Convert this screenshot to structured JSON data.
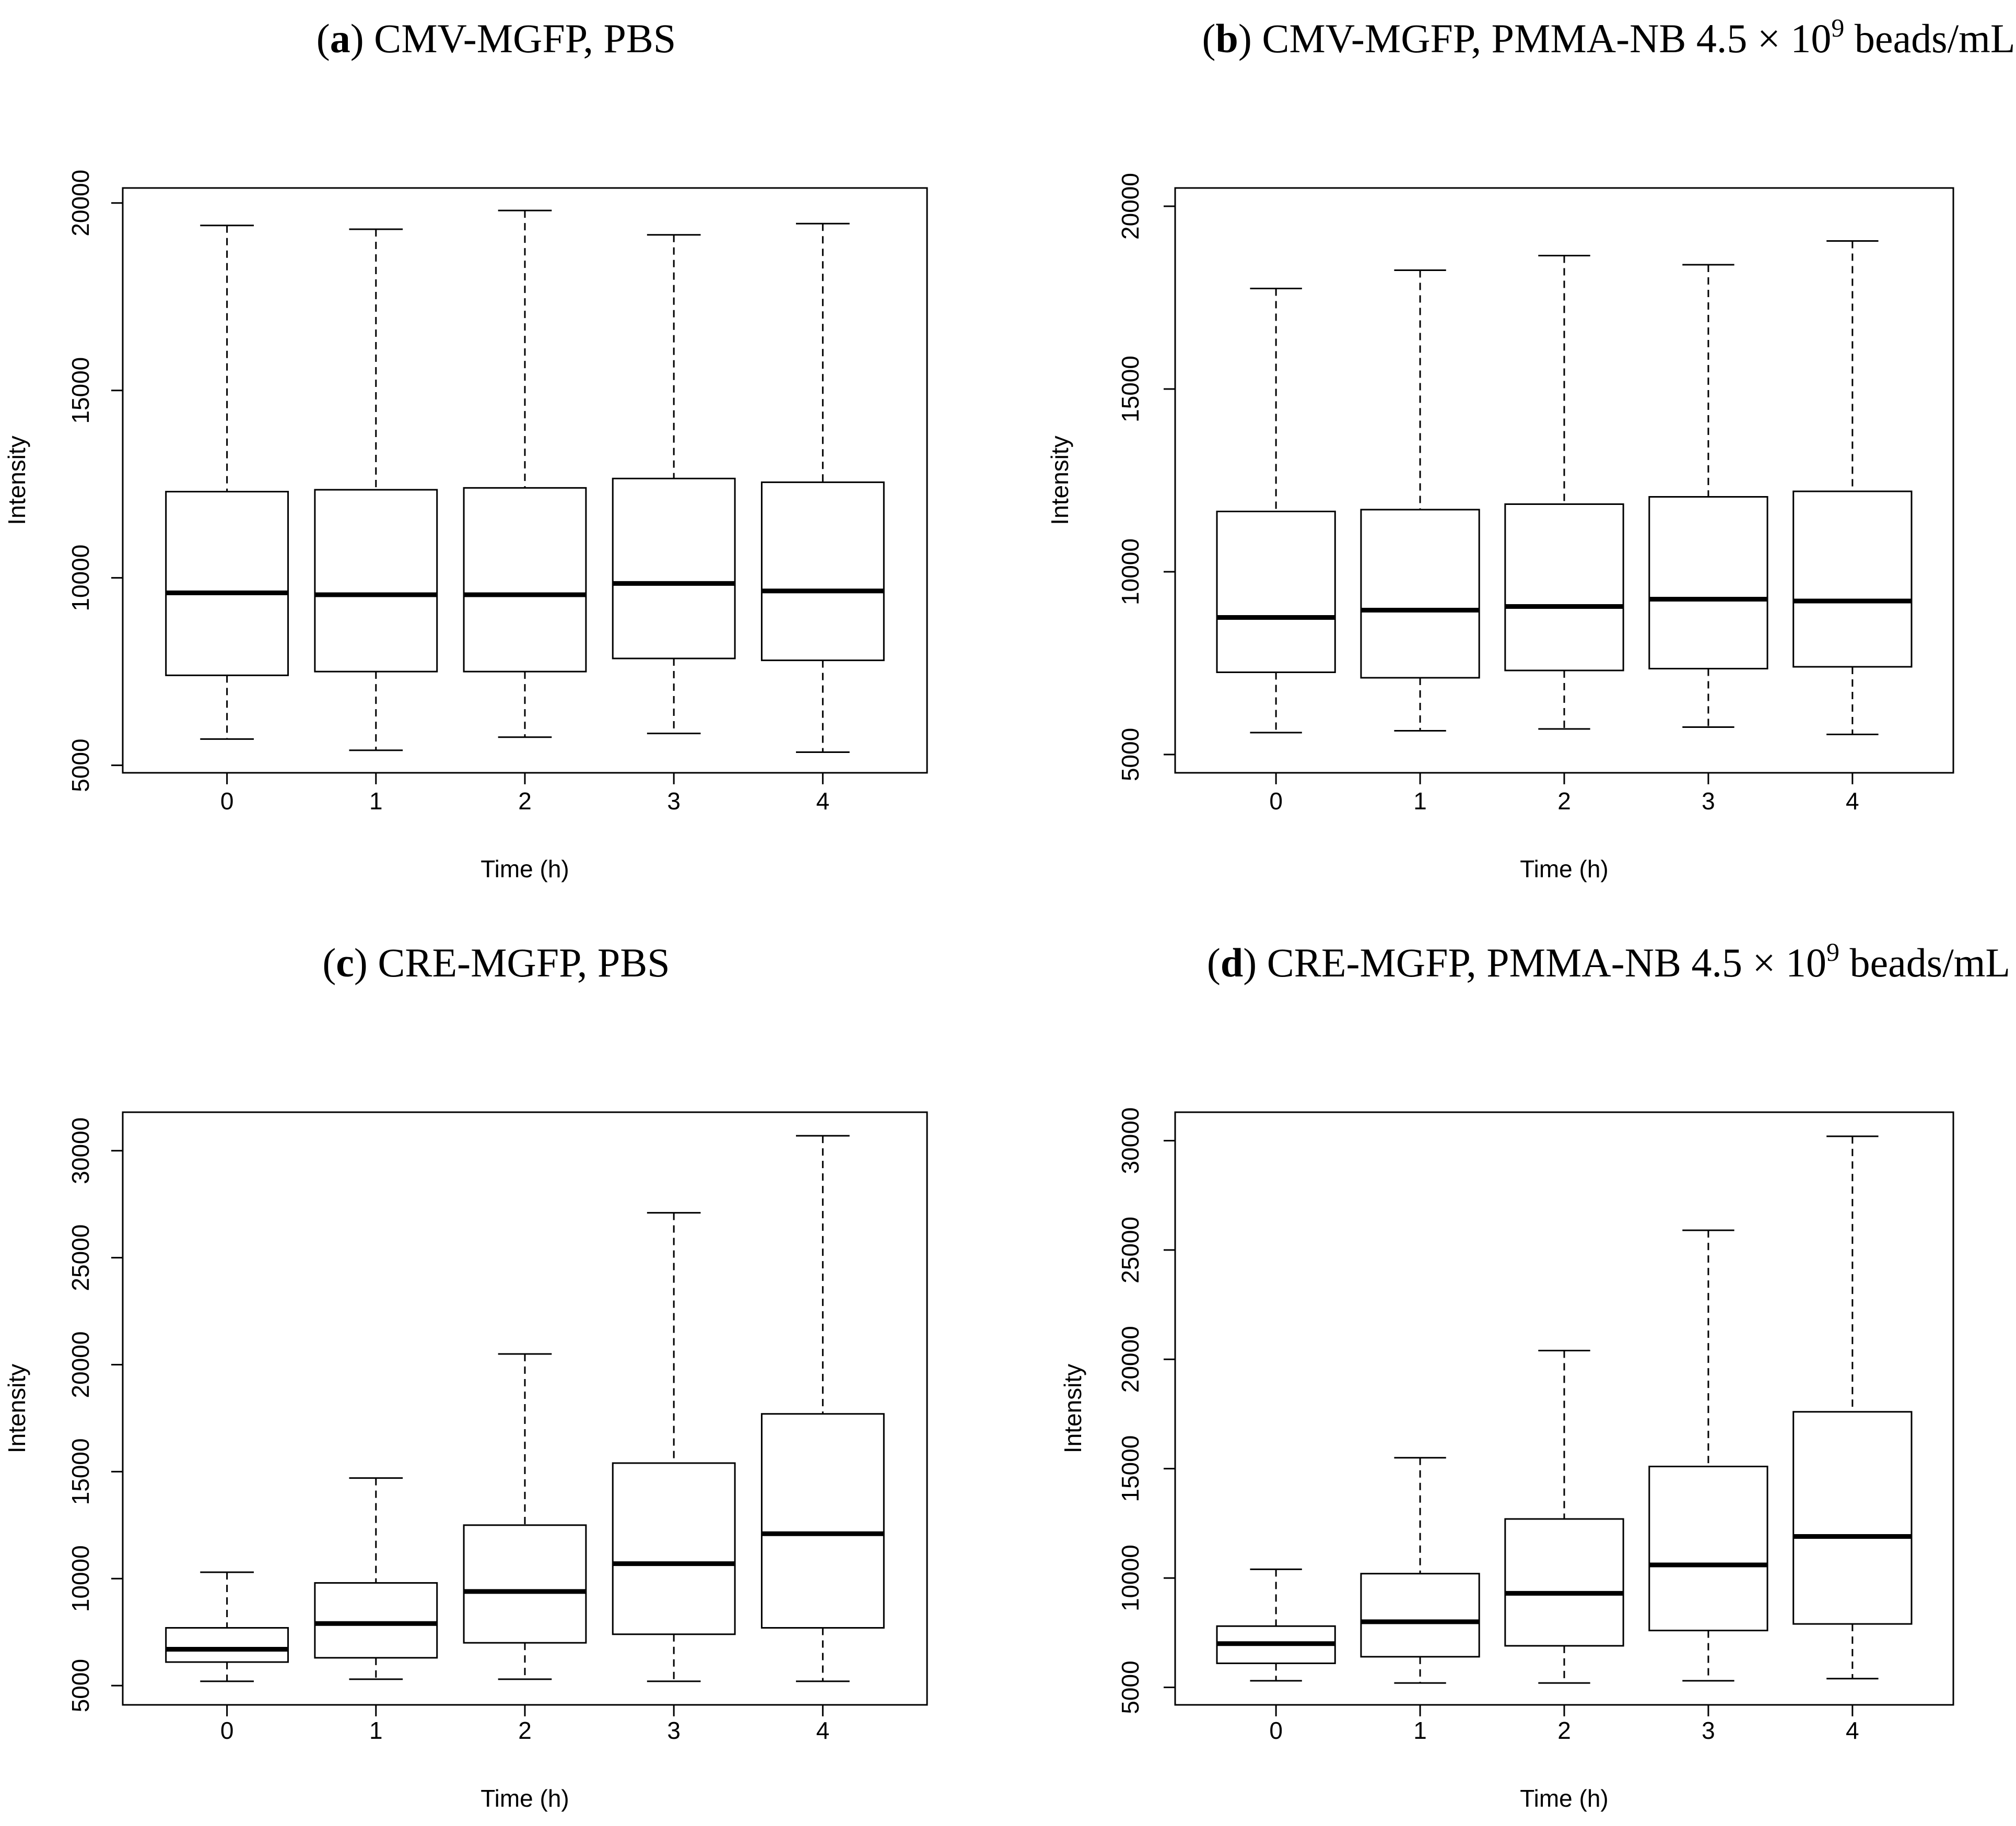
{
  "chart_data": [
    {
      "type": "boxplot",
      "label": "a",
      "title": "CMV-MGFP, PBS",
      "xlabel": "Time (h)",
      "ylabel": "Intensity",
      "categories": [
        "0",
        "1",
        "2",
        "3",
        "4"
      ],
      "yticks": [
        "5000",
        "10000",
        "15000",
        "20000"
      ],
      "ylim": [
        4800,
        20400
      ],
      "boxes": [
        {
          "min": 5700,
          "q1": 7400,
          "median": 9600,
          "q3": 12300,
          "max": 19400
        },
        {
          "min": 5400,
          "q1": 7500,
          "median": 9550,
          "q3": 12350,
          "max": 19300
        },
        {
          "min": 5750,
          "q1": 7500,
          "median": 9550,
          "q3": 12400,
          "max": 19800
        },
        {
          "min": 5850,
          "q1": 7850,
          "median": 9850,
          "q3": 12650,
          "max": 19150
        },
        {
          "min": 5350,
          "q1": 7800,
          "median": 9650,
          "q3": 12550,
          "max": 19450
        }
      ]
    },
    {
      "type": "boxplot",
      "label": "b",
      "title": "CMV-MGFP, PMMA-NB 4.5 × 10",
      "title_superscript": "9",
      "title_suffix": " beads/mL",
      "xlabel": "Time (h)",
      "ylabel": "Intensity",
      "categories": [
        "0",
        "1",
        "2",
        "3",
        "4"
      ],
      "yticks": [
        "5000",
        "10000",
        "15000",
        "20000"
      ],
      "ylim": [
        4500,
        20500
      ],
      "boxes": [
        {
          "min": 5600,
          "q1": 7250,
          "median": 8750,
          "q3": 11650,
          "max": 17750
        },
        {
          "min": 5650,
          "q1": 7100,
          "median": 8950,
          "q3": 11700,
          "max": 18250
        },
        {
          "min": 5700,
          "q1": 7300,
          "median": 9050,
          "q3": 11850,
          "max": 18650
        },
        {
          "min": 5750,
          "q1": 7350,
          "median": 9250,
          "q3": 12050,
          "max": 18400
        },
        {
          "min": 5550,
          "q1": 7400,
          "median": 9200,
          "q3": 12200,
          "max": 19050
        }
      ]
    },
    {
      "type": "boxplot",
      "label": "c",
      "title": "CRE-MGFP, PBS",
      "xlabel": "Time (h)",
      "ylabel": "Intensity",
      "categories": [
        "0",
        "1",
        "2",
        "3",
        "4"
      ],
      "yticks": [
        "5000",
        "10000",
        "15000",
        "20000",
        "25000",
        "30000"
      ],
      "ylim": [
        4100,
        31800
      ],
      "boxes": [
        {
          "min": 5200,
          "q1": 6100,
          "median": 6700,
          "q3": 7700,
          "max": 10300
        },
        {
          "min": 5300,
          "q1": 6300,
          "median": 7900,
          "q3": 9800,
          "max": 14700
        },
        {
          "min": 5300,
          "q1": 7000,
          "median": 9400,
          "q3": 12500,
          "max": 20500
        },
        {
          "min": 5200,
          "q1": 7400,
          "median": 10700,
          "q3": 15400,
          "max": 27100
        },
        {
          "min": 5200,
          "q1": 7700,
          "median": 12100,
          "q3": 17700,
          "max": 30700
        }
      ]
    },
    {
      "type": "boxplot",
      "label": "d",
      "title": "CRE-MGFP, PMMA-NB 4.5 × 10",
      "title_superscript": "9",
      "title_suffix": " beads/mL",
      "xlabel": "Time (h)",
      "ylabel": "Intensity",
      "categories": [
        "0",
        "1",
        "2",
        "3",
        "4"
      ],
      "yticks": [
        "5000",
        "10000",
        "15000",
        "20000",
        "25000",
        "30000"
      ],
      "ylim": [
        4200,
        31300
      ],
      "boxes": [
        {
          "min": 5300,
          "q1": 6100,
          "median": 7000,
          "q3": 7800,
          "max": 10400
        },
        {
          "min": 5200,
          "q1": 6400,
          "median": 8000,
          "q3": 10200,
          "max": 15500
        },
        {
          "min": 5200,
          "q1": 6900,
          "median": 9300,
          "q3": 12700,
          "max": 20400
        },
        {
          "min": 5300,
          "q1": 7600,
          "median": 10600,
          "q3": 15100,
          "max": 25900
        },
        {
          "min": 5400,
          "q1": 7900,
          "median": 11900,
          "q3": 17600,
          "max": 30200
        }
      ]
    }
  ]
}
